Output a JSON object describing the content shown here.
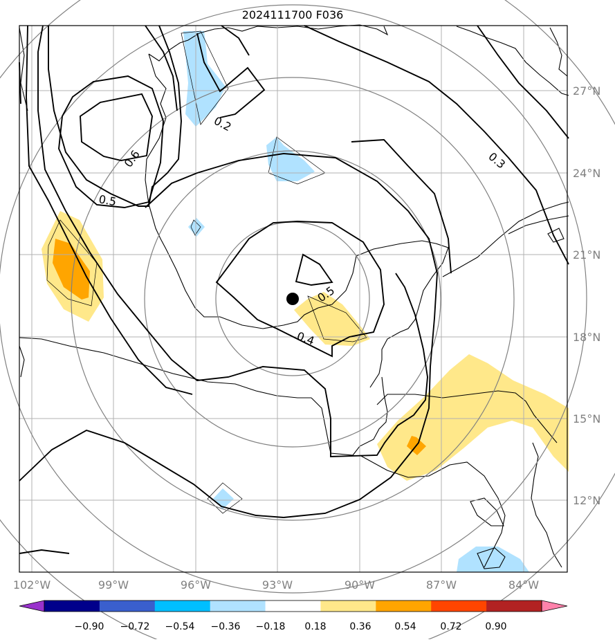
{
  "title": "2024111700 F036",
  "map": {
    "lon_labels": [
      "102°W",
      "99°W",
      "96°W",
      "93°W",
      "90°W",
      "87°W",
      "84°W"
    ],
    "lat_labels": [
      "27°N",
      "24°N",
      "21°N",
      "18°N",
      "15°N",
      "12°N"
    ],
    "contour_labels": [
      "0.2",
      "0.3",
      "0.6",
      "0.5",
      "0.5",
      "0.4"
    ],
    "center_marker": "storm-center",
    "colors": {
      "land_outline": "#000000",
      "grid": "#b0b0b0",
      "range_rings": "#808080",
      "contour": "#000000"
    }
  },
  "colorbar": {
    "ticks": [
      "−0.90",
      "−0.72",
      "−0.54",
      "−0.36",
      "−0.18",
      "0.18",
      "0.36",
      "0.54",
      "0.72",
      "0.90"
    ],
    "colors": [
      "#9932cc",
      "#00008b",
      "#3a5fcd",
      "#00bfff",
      "#b0e2ff",
      "#ffffff",
      "#ffe88a",
      "#ffa500",
      "#ff4500",
      "#b22222",
      "#ff82ab"
    ]
  }
}
